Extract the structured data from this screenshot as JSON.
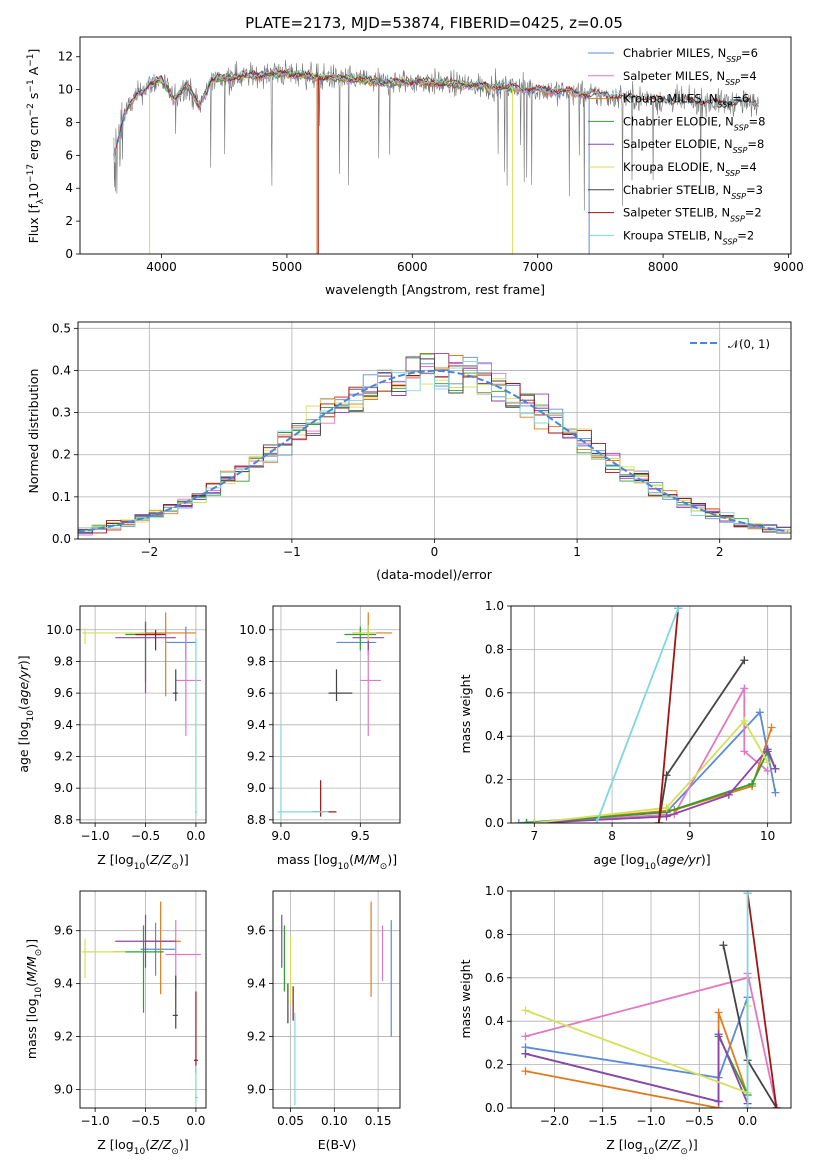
{
  "colors": {
    "chabrier_miles": "#5b8bd9",
    "salpeter_miles": "#e377c2",
    "kroupa_miles": "#e07b1f",
    "chabrier_elodie": "#2ca02c",
    "salpeter_elodie": "#8e44ad",
    "kroupa_elodie": "#d4e157",
    "chabrier_stelib": "#444444",
    "salpeter_stelib": "#a31515",
    "kroupa_stelib": "#7fd8e0"
  },
  "legend_spectrum": [
    {
      "name": "Chabrier MILES, N",
      "sub": "SSP",
      "val": "=6",
      "color": "#5b8bd9"
    },
    {
      "name": "Salpeter MILES, N",
      "sub": "SSP",
      "val": "=4",
      "color": "#e377c2"
    },
    {
      "name": "Kroupa MILES, N",
      "sub": "SSP",
      "val": "=6",
      "color": "#e07b1f"
    },
    {
      "name": "Chabrier ELODIE, N",
      "sub": "SSP",
      "val": "=8",
      "color": "#2ca02c"
    },
    {
      "name": "Salpeter ELODIE, N",
      "sub": "SSP",
      "val": "=8",
      "color": "#8e44ad"
    },
    {
      "name": "Kroupa ELODIE, N",
      "sub": "SSP",
      "val": "=4",
      "color": "#d4e157"
    },
    {
      "name": "Chabrier STELIB, N",
      "sub": "SSP",
      "val": "=3",
      "color": "#444444"
    },
    {
      "name": "Salpeter STELIB, N",
      "sub": "SSP",
      "val": "=2",
      "color": "#a31515"
    },
    {
      "name": "Kroupa STELIB, N",
      "sub": "SSP",
      "val": "=2",
      "color": "#7fd8e0"
    }
  ],
  "chart_data": [
    {
      "id": "spectrum",
      "type": "line",
      "title": "PLATE=2173, MJD=53874, FIBERID=0425, z=0.05",
      "xlabel": "wavelength [Angstrom, rest frame]",
      "ylabel": "Flux [fλ10⁻¹⁷ erg cm⁻² s⁻¹ A⁻¹]",
      "xlim": [
        3350,
        9020
      ],
      "ylim": [
        0,
        13.2
      ],
      "xticks": [
        4000,
        5000,
        6000,
        7000,
        8000,
        9000
      ],
      "yticks": [
        0,
        2,
        4,
        6,
        8,
        10,
        12
      ],
      "shape": [
        [
          3620,
          6
        ],
        [
          3700,
          8.5
        ],
        [
          3800,
          9.6
        ],
        [
          3900,
          10.3
        ],
        [
          4000,
          10.6
        ],
        [
          4100,
          9.4
        ],
        [
          4200,
          10.3
        ],
        [
          4300,
          9.0
        ],
        [
          4400,
          10.6
        ],
        [
          4600,
          10.8
        ],
        [
          4800,
          10.9
        ],
        [
          5000,
          11.0
        ],
        [
          5200,
          10.8
        ],
        [
          5400,
          10.7
        ],
        [
          5600,
          10.6
        ],
        [
          5800,
          10.4
        ],
        [
          6000,
          10.5
        ],
        [
          6200,
          10.4
        ],
        [
          6400,
          10.3
        ],
        [
          6600,
          10.2
        ],
        [
          6800,
          10.1
        ],
        [
          7000,
          10.0
        ],
        [
          7200,
          9.9
        ],
        [
          7400,
          9.7
        ],
        [
          7600,
          9.6
        ],
        [
          7800,
          9.5
        ],
        [
          8000,
          9.3
        ],
        [
          8200,
          9.3
        ],
        [
          8400,
          9.2
        ],
        [
          8600,
          9.2
        ],
        [
          8760,
          9.1
        ]
      ],
      "legend_loc": "upper right"
    },
    {
      "id": "residuals",
      "type": "histogram",
      "xlabel": "(data-model)/error",
      "ylabel": "Normed distribution",
      "xlim": [
        -2.5,
        2.5
      ],
      "ylim": [
        0,
        0.515
      ],
      "xticks": [
        -2,
        -1,
        0,
        1,
        2
      ],
      "yticks": [
        0.0,
        0.1,
        0.2,
        0.3,
        0.4,
        0.5
      ],
      "bin_width": 0.1,
      "grid": true,
      "legend": [
        "𝒩(0, 1)"
      ],
      "legend_loc": "upper right"
    },
    {
      "id": "age_vs_Z",
      "type": "errorbar",
      "xlabel": "Z [log₁₀(Z/Z⊙)]",
      "ylabel": "age  [log₁₀(age/yr)]",
      "xlim": [
        -1.15,
        0.1
      ],
      "ylim": [
        8.78,
        10.15
      ],
      "xticks": [
        -1.0,
        -0.5,
        0.0
      ],
      "yticks": [
        8.8,
        9.0,
        9.2,
        9.4,
        9.6,
        9.8,
        10.0
      ],
      "points": [
        {
          "series": "chabrier_miles",
          "x": -0.1,
          "y": 9.92,
          "xerr": [
            0.2,
            0.1
          ],
          "yerr": [
            0.1,
            0.1
          ]
        },
        {
          "series": "salpeter_miles",
          "x": -0.1,
          "y": 9.68,
          "xerr": [
            0.1,
            0.15
          ],
          "yerr": [
            0.35,
            0.3
          ]
        },
        {
          "series": "kroupa_miles",
          "x": -0.3,
          "y": 9.98,
          "xerr": [
            0.25,
            0.3
          ],
          "yerr": [
            0.4,
            0.13
          ]
        },
        {
          "series": "chabrier_elodie",
          "x": -0.5,
          "y": 9.97,
          "xerr": [
            0.2,
            0.15
          ],
          "yerr": [
            0.3,
            0.08
          ]
        },
        {
          "series": "salpeter_elodie",
          "x": -0.5,
          "y": 9.95,
          "xerr": [
            0.3,
            0.3
          ],
          "yerr": [
            0.35,
            0.1
          ]
        },
        {
          "series": "kroupa_elodie",
          "x": -1.1,
          "y": 9.98,
          "xerr": [
            0.03,
            0.6
          ],
          "yerr": [
            0.07,
            0.03
          ]
        },
        {
          "series": "chabrier_stelib",
          "x": -0.2,
          "y": 9.6,
          "xerr": [
            0.03,
            0.02
          ],
          "yerr": [
            0.05,
            0.15
          ]
        },
        {
          "series": "salpeter_stelib",
          "x": -0.4,
          "y": 9.97,
          "xerr": [
            0.2,
            0.1
          ],
          "yerr": [
            0.1,
            0.03
          ]
        },
        {
          "series": "kroupa_stelib",
          "x": 0.0,
          "y": 8.85,
          "xerr": [
            0.01,
            0.01
          ],
          "yerr": [
            0.03,
            1.1
          ]
        }
      ]
    },
    {
      "id": "age_vs_mass",
      "type": "errorbar",
      "xlabel": "mass [log₁₀(M/M⊙)]",
      "xlim": [
        8.95,
        9.75
      ],
      "ylim": [
        8.78,
        10.15
      ],
      "xticks": [
        9.0,
        9.5
      ],
      "yticks": [
        8.8,
        9.0,
        9.2,
        9.4,
        9.6,
        9.8,
        10.0
      ],
      "points": [
        {
          "series": "chabrier_miles",
          "x": 9.55,
          "y": 9.92,
          "xerr": [
            0.2,
            0.05
          ],
          "yerr": [
            0.08,
            0.1
          ]
        },
        {
          "series": "salpeter_miles",
          "x": 9.55,
          "y": 9.68,
          "xerr": [
            0.05,
            0.08
          ],
          "yerr": [
            0.35,
            0.3
          ]
        },
        {
          "series": "kroupa_miles",
          "x": 9.55,
          "y": 9.98,
          "xerr": [
            0.1,
            0.15
          ],
          "yerr": [
            0.08,
            0.13
          ]
        },
        {
          "series": "chabrier_elodie",
          "x": 9.5,
          "y": 9.97,
          "xerr": [
            0.1,
            0.1
          ],
          "yerr": [
            0.1,
            0.05
          ]
        },
        {
          "series": "salpeter_elodie",
          "x": 9.55,
          "y": 9.95,
          "xerr": [
            0.1,
            0.1
          ],
          "yerr": [
            0.08,
            0.08
          ]
        },
        {
          "series": "kroupa_elodie",
          "x": 9.55,
          "y": 9.98,
          "xerr": [
            0.1,
            0.05
          ],
          "yerr": [
            0.05,
            0.05
          ]
        },
        {
          "series": "chabrier_stelib",
          "x": 9.35,
          "y": 9.6,
          "xerr": [
            0.05,
            0.1
          ],
          "yerr": [
            0.05,
            0.15
          ]
        },
        {
          "series": "salpeter_stelib",
          "x": 9.25,
          "y": 8.85,
          "xerr": [
            0.05,
            0.1
          ],
          "yerr": [
            0.03,
            0.2
          ]
        },
        {
          "series": "kroupa_stelib",
          "x": 9.0,
          "y": 8.85,
          "xerr": [
            0.02,
            0.3
          ],
          "yerr": [
            0.04,
            0.55
          ]
        }
      ]
    },
    {
      "id": "massweight_vs_age",
      "type": "line",
      "xlabel": "age  [log₁₀(age/yr)]",
      "ylabel": "mass weight",
      "xlim": [
        6.7,
        10.3
      ],
      "ylim": [
        0,
        1.0
      ],
      "xticks": [
        7,
        8,
        9,
        10
      ],
      "yticks": [
        0.0,
        0.2,
        0.4,
        0.6,
        0.8,
        1.0
      ],
      "series": [
        {
          "key": "chabrier_miles",
          "x": [
            6.8,
            8.7,
            9.9,
            10.1
          ],
          "y": [
            0,
            0.05,
            0.51,
            0.14
          ]
        },
        {
          "key": "salpeter_miles",
          "x": [
            6.9,
            8.8,
            9.7,
            9.7,
            10.0
          ],
          "y": [
            0,
            0.04,
            0.62,
            0.33,
            0.24
          ]
        },
        {
          "key": "kroupa_miles",
          "x": [
            7.0,
            8.8,
            9.8,
            10.05
          ],
          "y": [
            0,
            0.06,
            0.17,
            0.44
          ]
        },
        {
          "key": "chabrier_elodie",
          "x": [
            6.9,
            8.7,
            9.8,
            10.0,
            10.1
          ],
          "y": [
            0,
            0.05,
            0.18,
            0.33,
            0.25
          ]
        },
        {
          "key": "salpeter_elodie",
          "x": [
            7.0,
            8.7,
            9.5,
            10.0,
            10.1
          ],
          "y": [
            0,
            0.03,
            0.13,
            0.34,
            0.25
          ]
        },
        {
          "key": "kroupa_elodie",
          "x": [
            7.0,
            8.7,
            9.7,
            10.0
          ],
          "y": [
            0,
            0.07,
            0.47,
            0.28
          ]
        },
        {
          "key": "chabrier_stelib",
          "x": [
            8.6,
            8.7,
            9.7
          ],
          "y": [
            0.0,
            0.22,
            0.75
          ]
        },
        {
          "key": "salpeter_stelib",
          "x": [
            8.6,
            8.85
          ],
          "y": [
            0.0,
            0.99
          ]
        },
        {
          "key": "kroupa_stelib",
          "x": [
            7.8,
            8.85
          ],
          "y": [
            0.0,
            0.99
          ]
        }
      ]
    },
    {
      "id": "mass_vs_Z",
      "type": "errorbar",
      "xlabel": "Z [log₁₀(Z/Z⊙)]",
      "ylabel": "mass [log₁₀(M/M⊙)]",
      "xlim": [
        -1.15,
        0.1
      ],
      "ylim": [
        8.93,
        9.75
      ],
      "xticks": [
        -1.0,
        -0.5,
        0.0
      ],
      "yticks": [
        9.0,
        9.2,
        9.4,
        9.6
      ],
      "points": [
        {
          "series": "chabrier_miles",
          "x": -0.4,
          "y": 9.53,
          "xerr": [
            0.15,
            0.2
          ],
          "yerr": [
            0.1,
            0.1
          ]
        },
        {
          "series": "salpeter_miles",
          "x": -0.2,
          "y": 9.51,
          "xerr": [
            0.1,
            0.25
          ],
          "yerr": [
            0.13,
            0.13
          ]
        },
        {
          "series": "kroupa_miles",
          "x": -0.35,
          "y": 9.56,
          "xerr": [
            0.15,
            0.2
          ],
          "yerr": [
            0.2,
            0.15
          ]
        },
        {
          "series": "chabrier_elodie",
          "x": -0.52,
          "y": 9.52,
          "xerr": [
            0.3,
            0.2
          ],
          "yerr": [
            0.23,
            0.1
          ]
        },
        {
          "series": "salpeter_elodie",
          "x": -0.5,
          "y": 9.56,
          "xerr": [
            0.3,
            0.3
          ],
          "yerr": [
            0.1,
            0.1
          ]
        },
        {
          "series": "kroupa_elodie",
          "x": -1.1,
          "y": 9.52,
          "xerr": [
            0.03,
            0.4
          ],
          "yerr": [
            0.1,
            0.05
          ]
        },
        {
          "series": "chabrier_stelib",
          "x": -0.2,
          "y": 9.28,
          "xerr": [
            0.03,
            0.02
          ],
          "yerr": [
            0.05,
            0.15
          ]
        },
        {
          "series": "salpeter_stelib",
          "x": 0.0,
          "y": 9.11,
          "xerr": [
            0.02,
            0.02
          ],
          "yerr": [
            0.05,
            0.26
          ]
        },
        {
          "series": "kroupa_stelib",
          "x": 0.0,
          "y": 8.97,
          "xerr": [
            0.01,
            0.02
          ],
          "yerr": [
            0.02,
            0.12
          ]
        }
      ]
    },
    {
      "id": "EBV",
      "type": "errorbar",
      "xlabel": "E(B-V)",
      "xlim": [
        0.03,
        0.175
      ],
      "ylim": [
        8.93,
        9.75
      ],
      "xticks": [
        0.05,
        0.1,
        0.15
      ],
      "yticks": [
        9.0,
        9.2,
        9.4,
        9.6
      ],
      "points": [
        {
          "series": "chabrier_miles",
          "x": 0.165,
          "y": 9.42,
          "xerr": [
            0,
            0
          ],
          "yerr": [
            0.22,
            0.22
          ]
        },
        {
          "series": "salpeter_miles",
          "x": 0.155,
          "y": 9.49,
          "xerr": [
            0,
            0
          ],
          "yerr": [
            0.08,
            0.13
          ]
        },
        {
          "series": "kroupa_miles",
          "x": 0.142,
          "y": 9.53,
          "xerr": [
            0,
            0
          ],
          "yerr": [
            0.18,
            0.18
          ]
        },
        {
          "series": "chabrier_elodie",
          "x": 0.043,
          "y": 9.52,
          "xerr": [
            0,
            0
          ],
          "yerr": [
            0.15,
            0.1
          ]
        },
        {
          "series": "salpeter_elodie",
          "x": 0.04,
          "y": 9.56,
          "xerr": [
            0,
            0
          ],
          "yerr": [
            0.1,
            0.1
          ]
        },
        {
          "series": "kroupa_elodie",
          "x": 0.05,
          "y": 9.48,
          "xerr": [
            0,
            0
          ],
          "yerr": [
            0.16,
            0.1
          ]
        },
        {
          "series": "chabrier_stelib",
          "x": 0.047,
          "y": 9.35,
          "xerr": [
            0,
            0
          ],
          "yerr": [
            0.1,
            0.05
          ]
        },
        {
          "series": "salpeter_stelib",
          "x": 0.053,
          "y": 9.31,
          "xerr": [
            0,
            0
          ],
          "yerr": [
            0.05,
            0.08
          ]
        },
        {
          "series": "kroupa_stelib",
          "x": 0.055,
          "y": 9.14,
          "xerr": [
            0,
            0
          ],
          "yerr": [
            0.2,
            0.15
          ]
        }
      ]
    },
    {
      "id": "massweight_vs_Z",
      "type": "line",
      "xlabel": "Z [log₁₀(Z/Z⊙)]",
      "ylabel": "mass weight",
      "xlim": [
        -2.45,
        0.45
      ],
      "ylim": [
        0,
        1.0
      ],
      "xticks": [
        -2.0,
        -1.5,
        -1.0,
        -0.5,
        0.0
      ],
      "yticks": [
        0.0,
        0.2,
        0.4,
        0.6,
        0.8,
        1.0
      ],
      "series": [
        {
          "key": "chabrier_miles",
          "x": [
            -2.3,
            -0.3,
            0.0,
            0.0
          ],
          "y": [
            0.28,
            0.14,
            0.51,
            0.0
          ]
        },
        {
          "key": "salpeter_miles",
          "x": [
            -2.3,
            0.0,
            0.0,
            0.3
          ],
          "y": [
            0.33,
            0.6,
            0.62,
            0.0
          ]
        },
        {
          "key": "kroupa_miles",
          "x": [
            -2.3,
            -0.3,
            -0.3,
            0.0
          ],
          "y": [
            0.17,
            0.0,
            0.44,
            0.06
          ]
        },
        {
          "key": "chabrier_elodie",
          "x": [
            -2.3,
            -0.3,
            -0.3,
            0.0
          ],
          "y": [
            0.25,
            0.03,
            0.33,
            0.06
          ]
        },
        {
          "key": "salpeter_elodie",
          "x": [
            -2.3,
            -0.3,
            -0.3,
            0.0
          ],
          "y": [
            0.25,
            0.03,
            0.34,
            0.02
          ]
        },
        {
          "key": "kroupa_elodie",
          "x": [
            -2.3,
            0.0,
            0.0
          ],
          "y": [
            0.45,
            0.07,
            0.47
          ]
        },
        {
          "key": "chabrier_stelib",
          "x": [
            -0.25,
            0.0,
            0.3
          ],
          "y": [
            0.75,
            0.22,
            0.0
          ]
        },
        {
          "key": "salpeter_stelib",
          "x": [
            0.0,
            0.3
          ],
          "y": [
            0.99,
            0.0
          ]
        },
        {
          "key": "kroupa_stelib",
          "x": [
            0.0,
            0.0
          ],
          "y": [
            0.0,
            0.99
          ]
        }
      ]
    }
  ]
}
